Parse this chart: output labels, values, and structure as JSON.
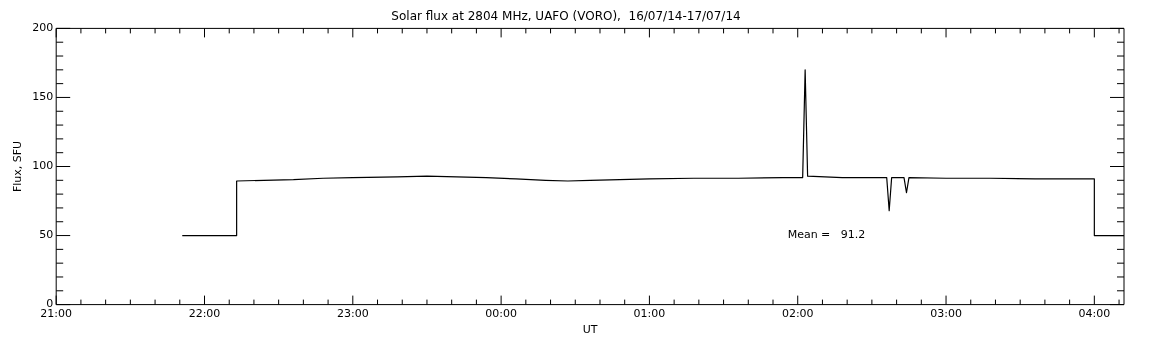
{
  "chart_data": {
    "type": "line",
    "title": "Solar flux at 2804 MHz, UAFO (VORO),  16/07/14-17/07/14",
    "xlabel": "UT",
    "ylabel": "Flux, SFU",
    "annotations": [
      "Mean =   91.2"
    ],
    "xlim": [
      "--07-16T21:00",
      "--07-17T04:12"
    ],
    "xticks": [
      {
        "value": "--07-16T21:00",
        "label": "21:00"
      },
      {
        "value": "--07-16T21:10",
        "label": null
      },
      {
        "value": "--07-16T21:20",
        "label": null
      },
      {
        "value": "--07-16T21:30",
        "label": null
      },
      {
        "value": "--07-16T21:40",
        "label": null
      },
      {
        "value": "--07-16T21:50",
        "label": null
      },
      {
        "value": "--07-16T22:00",
        "label": "22:00"
      },
      {
        "value": "--07-16T22:10",
        "label": null
      },
      {
        "value": "--07-16T22:20",
        "label": null
      },
      {
        "value": "--07-16T22:30",
        "label": null
      },
      {
        "value": "--07-16T22:40",
        "label": null
      },
      {
        "value": "--07-16T22:50",
        "label": null
      },
      {
        "value": "--07-16T23:00",
        "label": "23:00"
      },
      {
        "value": "--07-16T23:10",
        "label": null
      },
      {
        "value": "--07-16T23:20",
        "label": null
      },
      {
        "value": "--07-16T23:30",
        "label": null
      },
      {
        "value": "--07-16T23:40",
        "label": null
      },
      {
        "value": "--07-16T23:50",
        "label": null
      },
      {
        "value": "--07-17T00:00",
        "label": "00:00"
      },
      {
        "value": "--07-17T00:10",
        "label": null
      },
      {
        "value": "--07-17T00:20",
        "label": null
      },
      {
        "value": "--07-17T00:30",
        "label": null
      },
      {
        "value": "--07-17T00:40",
        "label": null
      },
      {
        "value": "--07-17T00:50",
        "label": null
      },
      {
        "value": "--07-17T01:00",
        "label": "01:00"
      },
      {
        "value": "--07-17T01:10",
        "label": null
      },
      {
        "value": "--07-17T01:20",
        "label": null
      },
      {
        "value": "--07-17T01:30",
        "label": null
      },
      {
        "value": "--07-17T01:40",
        "label": null
      },
      {
        "value": "--07-17T01:50",
        "label": null
      },
      {
        "value": "--07-17T02:00",
        "label": "02:00"
      },
      {
        "value": "--07-17T02:10",
        "label": null
      },
      {
        "value": "--07-17T02:20",
        "label": null
      },
      {
        "value": "--07-17T02:30",
        "label": null
      },
      {
        "value": "--07-17T02:40",
        "label": null
      },
      {
        "value": "--07-17T02:50",
        "label": null
      },
      {
        "value": "--07-17T03:00",
        "label": "03:00"
      },
      {
        "value": "--07-17T03:10",
        "label": null
      },
      {
        "value": "--07-17T03:20",
        "label": null
      },
      {
        "value": "--07-17T03:30",
        "label": null
      },
      {
        "value": "--07-17T03:40",
        "label": null
      },
      {
        "value": "--07-17T03:50",
        "label": null
      },
      {
        "value": "--07-17T04:00",
        "label": "04:00"
      },
      {
        "value": "--07-17T04:10",
        "label": null
      }
    ],
    "ylim": [
      0,
      200
    ],
    "yticks": [
      0,
      {
        "value": 10,
        "label": null
      },
      {
        "value": 20,
        "label": null
      },
      {
        "value": 30,
        "label": null
      },
      {
        "value": 40,
        "label": null
      },
      50,
      {
        "value": 60,
        "label": null
      },
      {
        "value": 70,
        "label": null
      },
      {
        "value": 80,
        "label": null
      },
      {
        "value": 90,
        "label": null
      },
      100,
      {
        "value": 110,
        "label": null
      },
      {
        "value": 120,
        "label": null
      },
      {
        "value": 130,
        "label": null
      },
      {
        "value": 140,
        "label": null
      },
      150,
      {
        "value": 160,
        "label": null
      },
      {
        "value": 170,
        "label": null
      },
      {
        "value": 180,
        "label": null
      },
      {
        "value": 190,
        "label": null
      },
      200
    ],
    "grid": false,
    "legend": false,
    "marker": "none",
    "line_style": "solid",
    "series": [
      {
        "color": "#000000",
        "x": [
          "--07-16T21:51",
          "--07-16T22:13",
          "--07-16T22:13",
          "--07-16T22:24",
          "--07-16T22:36",
          "--07-16T22:48",
          "--07-16T23:00",
          "--07-16T23:18",
          "--07-16T23:30",
          "--07-16T23:42",
          "--07-16T23:54",
          "--07-17T00:06",
          "--07-17T00:18",
          "--07-17T00:27",
          "--07-17T00:36",
          "--07-17T00:48",
          "--07-17T01:00",
          "--07-17T01:18",
          "--07-17T01:36",
          "--07-17T01:54",
          "--07-17T02:02",
          "--07-17T02:03",
          "--07-17T02:04",
          "--07-17T02:18",
          "--07-17T02:36",
          "--07-17T02:37",
          "--07-17T02:38",
          "--07-17T02:43",
          "--07-17T02:44",
          "--07-17T02:45",
          "--07-17T03:00",
          "--07-17T03:18",
          "--07-17T03:36",
          "--07-17T03:54",
          "--07-17T04:00",
          "--07-17T04:00",
          "--07-17T04:12"
        ],
        "values": [
          50,
          50,
          89.5,
          90,
          90.5,
          91.5,
          92,
          92.5,
          93,
          92.5,
          92,
          91,
          90,
          89.5,
          90,
          90.5,
          91,
          91.5,
          91.5,
          92,
          92,
          170,
          93,
          92,
          92,
          68,
          92,
          92,
          81,
          92,
          91.5,
          91.5,
          91,
          91,
          91,
          50,
          50
        ]
      }
    ]
  }
}
